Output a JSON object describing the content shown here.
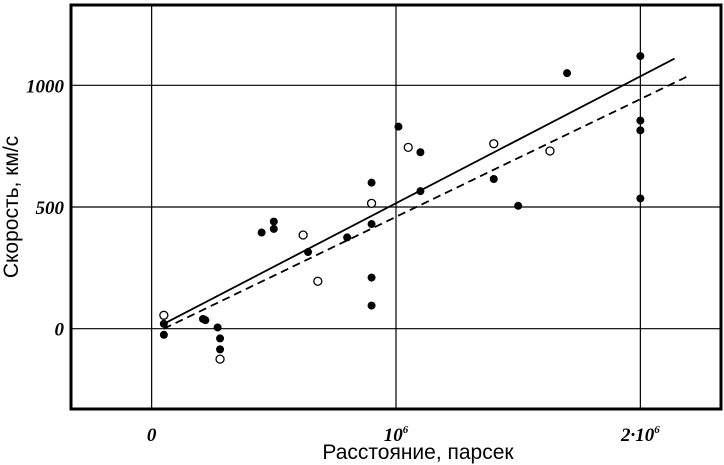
{
  "chart_data": {
    "type": "scatter",
    "xlabel": "Расстояние, парсек",
    "ylabel": "Скорость, км/с",
    "xlim": [
      -330000,
      2330000
    ],
    "ylim": [
      -330,
      1330
    ],
    "x_ticks": [
      {
        "value": 0,
        "label": "0"
      },
      {
        "value": 1000000,
        "label": "10",
        "sup": "6"
      },
      {
        "value": 2000000,
        "label": "2·10",
        "sup": "6"
      }
    ],
    "y_ticks": [
      {
        "value": 0,
        "label": "0"
      },
      {
        "value": 500,
        "label": "500"
      },
      {
        "value": 1000,
        "label": "1000"
      }
    ],
    "grid": true,
    "series": [
      {
        "marker": "filled",
        "points": [
          [
            50000,
            20
          ],
          [
            50000,
            -25
          ],
          [
            210000,
            40
          ],
          [
            220000,
            35
          ],
          [
            270000,
            5
          ],
          [
            280000,
            -40
          ],
          [
            280000,
            -85
          ],
          [
            450000,
            395
          ],
          [
            500000,
            440
          ],
          [
            500000,
            410
          ],
          [
            640000,
            315
          ],
          [
            800000,
            375
          ],
          [
            900000,
            600
          ],
          [
            900000,
            430
          ],
          [
            900000,
            210
          ],
          [
            900000,
            95
          ],
          [
            1010000,
            830
          ],
          [
            1100000,
            725
          ],
          [
            1100000,
            565
          ],
          [
            1400000,
            615
          ],
          [
            1500000,
            505
          ],
          [
            1700000,
            1050
          ],
          [
            2000000,
            1120
          ],
          [
            2000000,
            855
          ],
          [
            2000000,
            815
          ],
          [
            2000000,
            535
          ]
        ]
      },
      {
        "marker": "open",
        "points": [
          [
            50000,
            55
          ],
          [
            280000,
            -125
          ],
          [
            620000,
            385
          ],
          [
            680000,
            195
          ],
          [
            900000,
            515
          ],
          [
            1050000,
            745
          ],
          [
            1400000,
            760
          ],
          [
            1630000,
            730
          ]
        ]
      }
    ],
    "fit_lines": [
      {
        "style": "solid",
        "from": [
          50000,
          20
        ],
        "to": [
          2140000,
          1110
        ]
      },
      {
        "style": "dashed",
        "from": [
          50000,
          0
        ],
        "to": [
          2200000,
          1040
        ]
      }
    ]
  }
}
